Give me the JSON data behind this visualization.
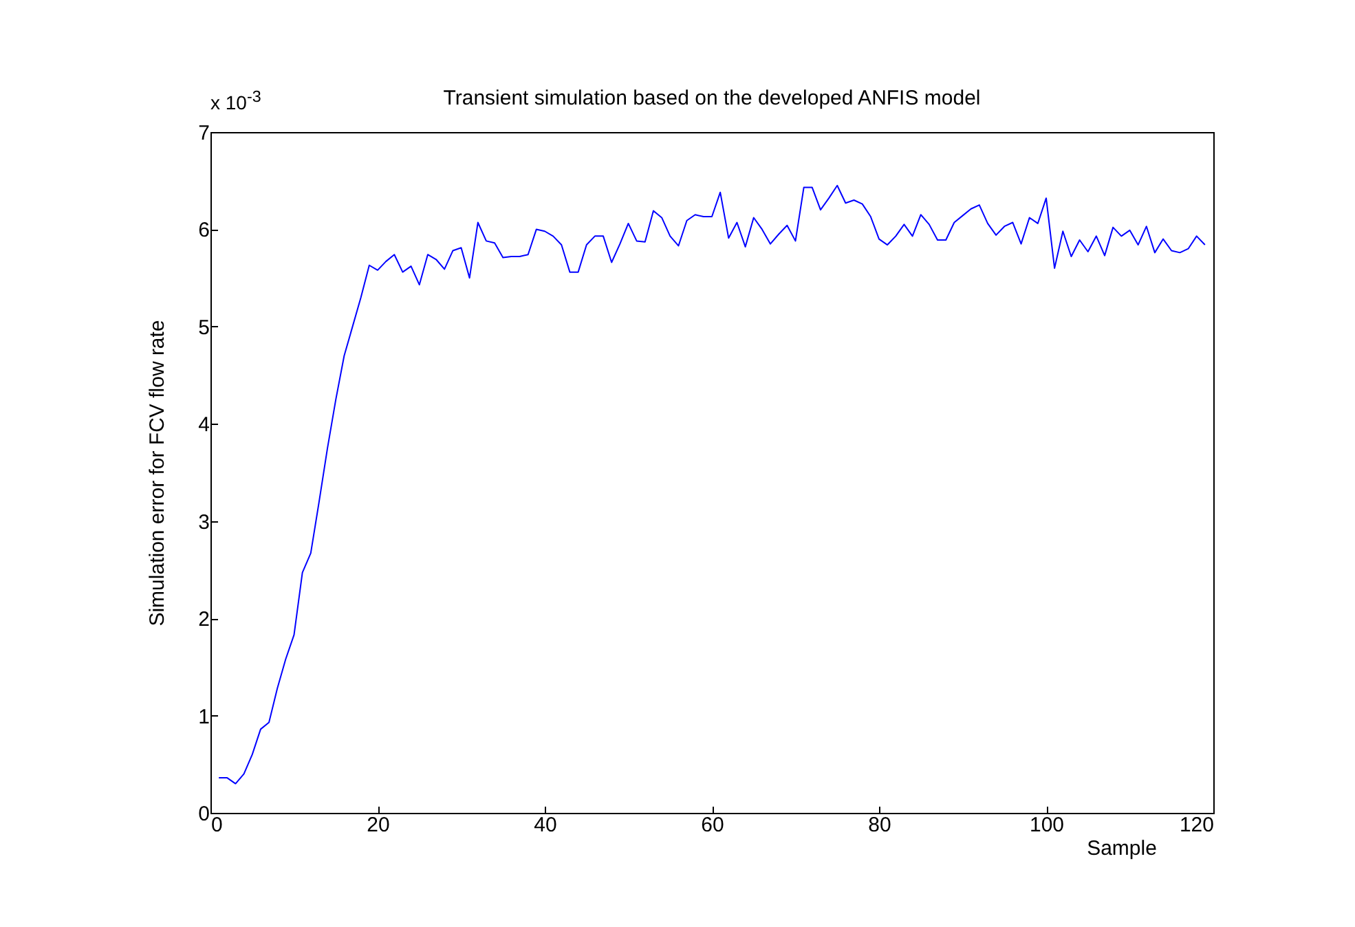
{
  "chart_data": {
    "type": "line",
    "title": "Transient simulation based on the developed ANFIS model",
    "xlabel": "Sample",
    "ylabel": "Simulation error for FCV flow rate",
    "annotations": [
      "x 10$^{-3}$"
    ],
    "x": [
      1,
      2,
      3,
      4,
      5,
      6,
      7,
      8,
      9,
      10,
      11,
      12,
      13,
      14,
      15,
      16,
      17,
      18,
      19,
      20,
      21,
      22,
      23,
      24,
      25,
      26,
      27,
      28,
      29,
      30,
      31,
      32,
      33,
      34,
      35,
      36,
      37,
      38,
      39,
      40,
      41,
      42,
      43,
      44,
      45,
      46,
      47,
      48,
      49,
      50,
      51,
      52,
      53,
      54,
      55,
      56,
      57,
      58,
      59,
      60,
      61,
      62,
      63,
      64,
      65,
      66,
      67,
      68,
      69,
      70,
      71,
      72,
      73,
      74,
      75,
      76,
      77,
      78,
      79,
      80,
      81,
      82,
      83,
      84,
      85,
      86,
      87,
      88,
      89,
      90,
      91,
      92,
      93,
      94,
      95,
      96,
      97,
      98,
      99,
      100,
      101,
      102,
      103,
      104,
      105,
      106,
      107,
      108,
      109,
      110,
      111,
      112,
      113,
      114,
      115,
      116,
      117,
      118,
      119
    ],
    "series": [
      {
        "color": "#0000ff",
        "values": [
          0.36,
          0.36,
          0.3,
          0.4,
          0.6,
          0.86,
          0.93,
          1.28,
          1.58,
          1.83,
          2.47,
          2.67,
          3.2,
          3.75,
          4.25,
          4.7,
          5.0,
          5.3,
          5.63,
          5.58,
          5.67,
          5.74,
          5.56,
          5.62,
          5.43,
          5.74,
          5.69,
          5.59,
          5.78,
          5.81,
          5.5,
          6.07,
          5.88,
          5.86,
          5.71,
          5.72,
          5.72,
          5.74,
          6.0,
          5.98,
          5.93,
          5.84,
          5.56,
          5.56,
          5.84,
          5.93,
          5.93,
          5.66,
          5.85,
          6.06,
          5.88,
          5.87,
          6.19,
          6.12,
          5.93,
          5.83,
          6.09,
          6.15,
          6.13,
          6.13,
          6.38,
          5.91,
          6.07,
          5.82,
          6.12,
          6.0,
          5.85,
          5.95,
          6.04,
          5.88,
          6.43,
          6.43,
          6.2,
          6.32,
          6.45,
          6.27,
          6.3,
          6.26,
          6.13,
          5.9,
          5.84,
          5.93,
          6.05,
          5.93,
          6.15,
          6.05,
          5.89,
          5.89,
          6.07,
          6.14,
          6.21,
          6.25,
          6.06,
          5.94,
          6.03,
          6.07,
          5.85,
          6.12,
          6.06,
          6.32,
          5.6,
          5.98,
          5.72,
          5.89,
          5.77,
          5.93,
          5.73,
          6.02,
          5.93,
          5.99,
          5.84,
          6.03,
          5.76,
          5.9,
          5.78,
          5.76,
          5.8,
          5.93,
          5.84
        ]
      }
    ],
    "xlim": [
      0,
      120
    ],
    "xticks": [
      0,
      20,
      40,
      60,
      80,
      100,
      120
    ],
    "ylim": [
      0,
      7
    ],
    "yticks": [
      0,
      1,
      2,
      3,
      4,
      5,
      6,
      7
    ],
    "grid": false,
    "marker": "none",
    "line_style": "solid"
  }
}
